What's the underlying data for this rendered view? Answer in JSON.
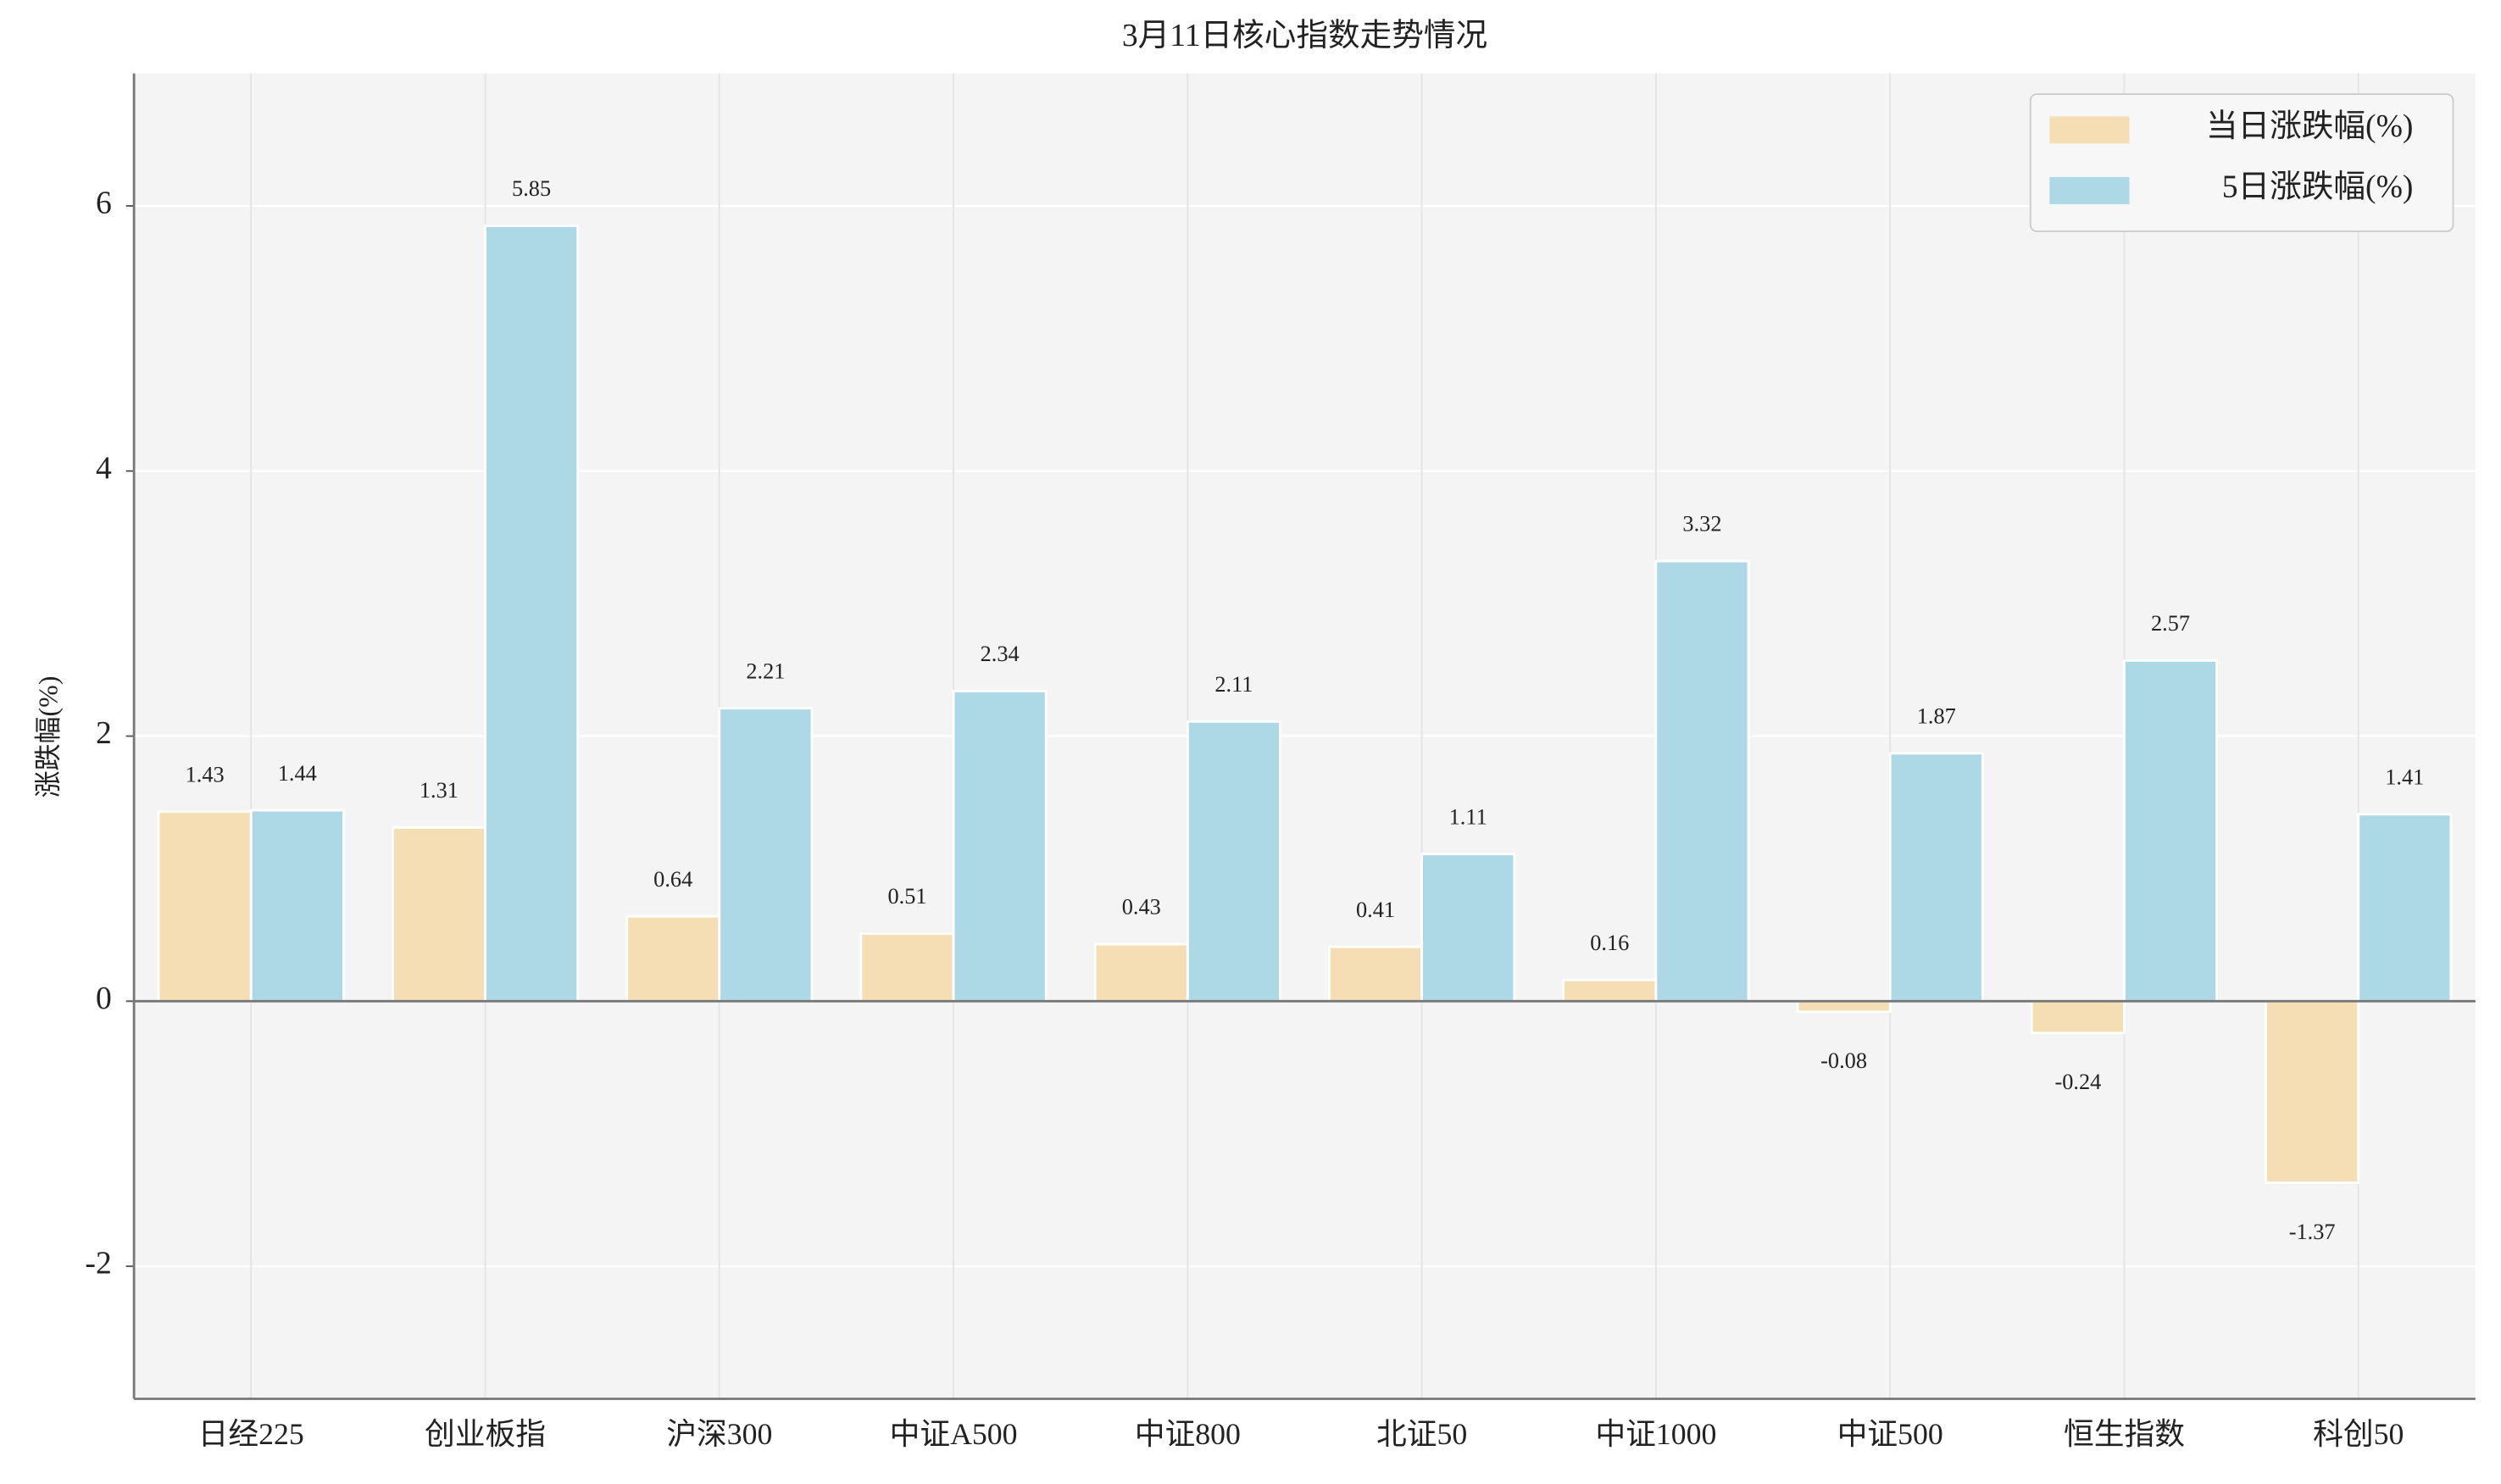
{
  "chart_data": {
    "type": "bar",
    "title": "3月11日核心指数走势情况",
    "y_label": "涨跌幅(%)",
    "categories": [
      "日经225",
      "创业板指",
      "沪深300",
      "中证A500",
      "中证800",
      "北证50",
      "中证1000",
      "中证500",
      "恒生指数",
      "科创50"
    ],
    "series": [
      {
        "name": "当日涨跌幅(%)",
        "color": "#f5deb3",
        "values": [
          1.43,
          1.31,
          0.64,
          0.51,
          0.43,
          0.41,
          0.16,
          -0.08,
          -0.24,
          -1.37
        ]
      },
      {
        "name": "5日涨跌幅(%)",
        "color": "#add8e6",
        "values": [
          1.44,
          5.85,
          2.21,
          2.34,
          2.11,
          1.11,
          3.32,
          1.87,
          2.57,
          1.41
        ]
      }
    ],
    "ylim": [
      -3,
      7
    ],
    "yticks": [
      -2,
      0,
      2,
      4,
      6
    ],
    "grid": true,
    "legend": "upper right"
  }
}
